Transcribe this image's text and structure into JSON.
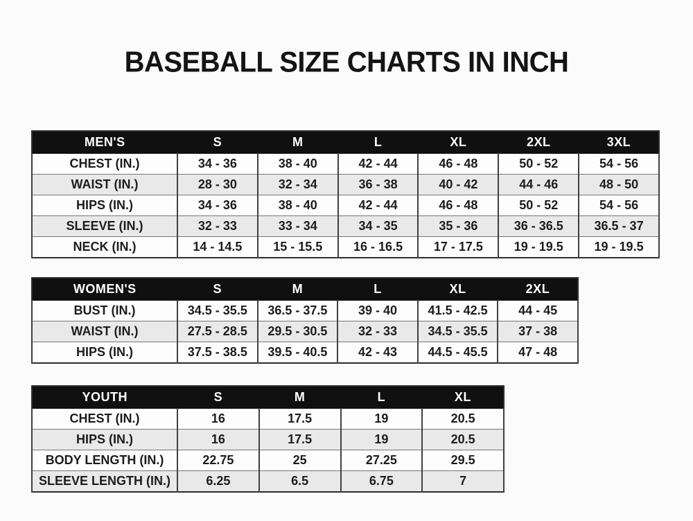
{
  "page_title": "BASEBALL SIZE CHARTS IN INCH",
  "colors": {
    "page_bg": "#fbfbfb",
    "header_bg": "#101010",
    "header_text": "#ffffff",
    "row_bg": "#fdfdfd",
    "row_alt_bg": "#e9e9e9",
    "border": "#404040",
    "text": "#1c1c1c"
  },
  "chart_data": [
    {
      "type": "table",
      "title": "MEN'S",
      "columns": [
        "MEN'S",
        "S",
        "M",
        "L",
        "XL",
        "2XL",
        "3XL"
      ],
      "rows": [
        [
          "CHEST (IN.)",
          "34 - 36",
          "38 - 40",
          "42 - 44",
          "46 - 48",
          "50 - 52",
          "54 - 56"
        ],
        [
          "WAIST (IN.)",
          "28 - 30",
          "32 - 34",
          "36 - 38",
          "40 - 42",
          "44 - 46",
          "48 - 50"
        ],
        [
          "HIPS (IN.)",
          "34 - 36",
          "38 - 40",
          "42 - 44",
          "46 - 48",
          "50 - 52",
          "54 - 56"
        ],
        [
          "SLEEVE (IN.)",
          "32 - 33",
          "33 - 34",
          "34 - 35",
          "35 - 36",
          "36 - 36.5",
          "36.5 - 37"
        ],
        [
          "NECK (IN.)",
          "14 - 14.5",
          "15 - 15.5",
          "16 - 16.5",
          "17 - 17.5",
          "19 - 19.5",
          "19 - 19.5"
        ]
      ]
    },
    {
      "type": "table",
      "title": "WOMEN'S",
      "columns": [
        "WOMEN'S",
        "S",
        "M",
        "L",
        "XL",
        "2XL"
      ],
      "rows": [
        [
          "BUST (IN.)",
          "34.5 - 35.5",
          "36.5 - 37.5",
          "39 - 40",
          "41.5 - 42.5",
          "44 - 45"
        ],
        [
          "WAIST (IN.)",
          "27.5 - 28.5",
          "29.5 - 30.5",
          "32 - 33",
          "34.5 - 35.5",
          "37 - 38"
        ],
        [
          "HIPS (IN.)",
          "37.5 - 38.5",
          "39.5 - 40.5",
          "42 - 43",
          "44.5 - 45.5",
          "47 - 48"
        ]
      ]
    },
    {
      "type": "table",
      "title": "YOUTH",
      "columns": [
        "YOUTH",
        "S",
        "M",
        "L",
        "XL"
      ],
      "rows": [
        [
          "CHEST (IN.)",
          "16",
          "17.5",
          "19",
          "20.5"
        ],
        [
          "HIPS (IN.)",
          "16",
          "17.5",
          "19",
          "20.5"
        ],
        [
          "BODY LENGTH (IN.)",
          "22.75",
          "25",
          "27.25",
          "29.5"
        ],
        [
          "SLEEVE LENGTH (IN.)",
          "6.25",
          "6.5",
          "6.75",
          "7"
        ]
      ]
    }
  ]
}
